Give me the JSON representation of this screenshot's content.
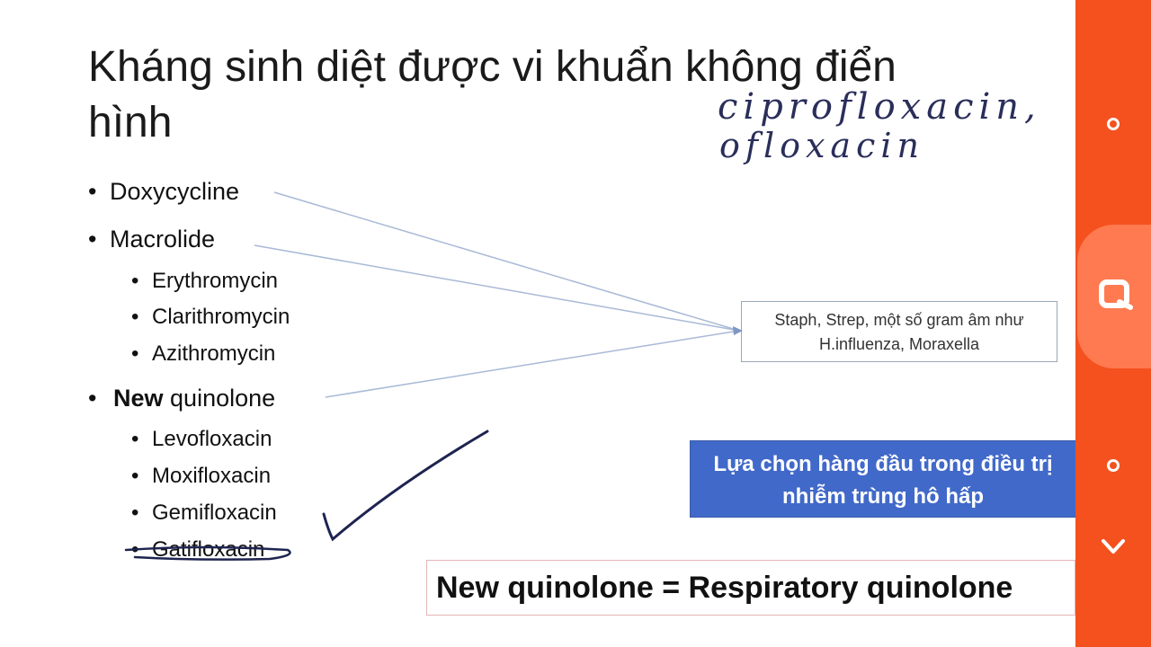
{
  "slide": {
    "title_line1": "Kháng sinh diệt được vi khuẩn không điển",
    "title_line2": "hình",
    "bullets": {
      "doxy": "Doxycycline",
      "macrolide": "Macrolide",
      "erythro": "Erythromycin",
      "clarithro": "Clarithromycin",
      "azithro": "Azithromycin",
      "new_bold": "New",
      "new_rest": " quinolone",
      "levo": "Levofloxacin",
      "moxi": "Moxifloxacin",
      "gemi": "Gemifloxacin",
      "gati": "Gatifloxacin"
    },
    "bullet_char": "•",
    "target_box": {
      "line1": "Staph, Strep, một số gram âm như",
      "line2": "H.influenza, Moraxella"
    },
    "blue_box": {
      "line1": "Lựa chọn hàng đầu trong điều trị",
      "line2": "nhiễm trùng hô hấp",
      "color": "#4169c9"
    },
    "equation": "New quinolone = Respiratory quinolone",
    "handwriting": {
      "line1": "ciprofloxacin,",
      "line2": "ofloxacin"
    }
  },
  "sidebar": {
    "color": "#f4511e",
    "highlight_color": "#ff7a50",
    "icons": [
      "circle-icon",
      "magnifier-icon",
      "circle-icon",
      "chevron-down-icon"
    ]
  }
}
